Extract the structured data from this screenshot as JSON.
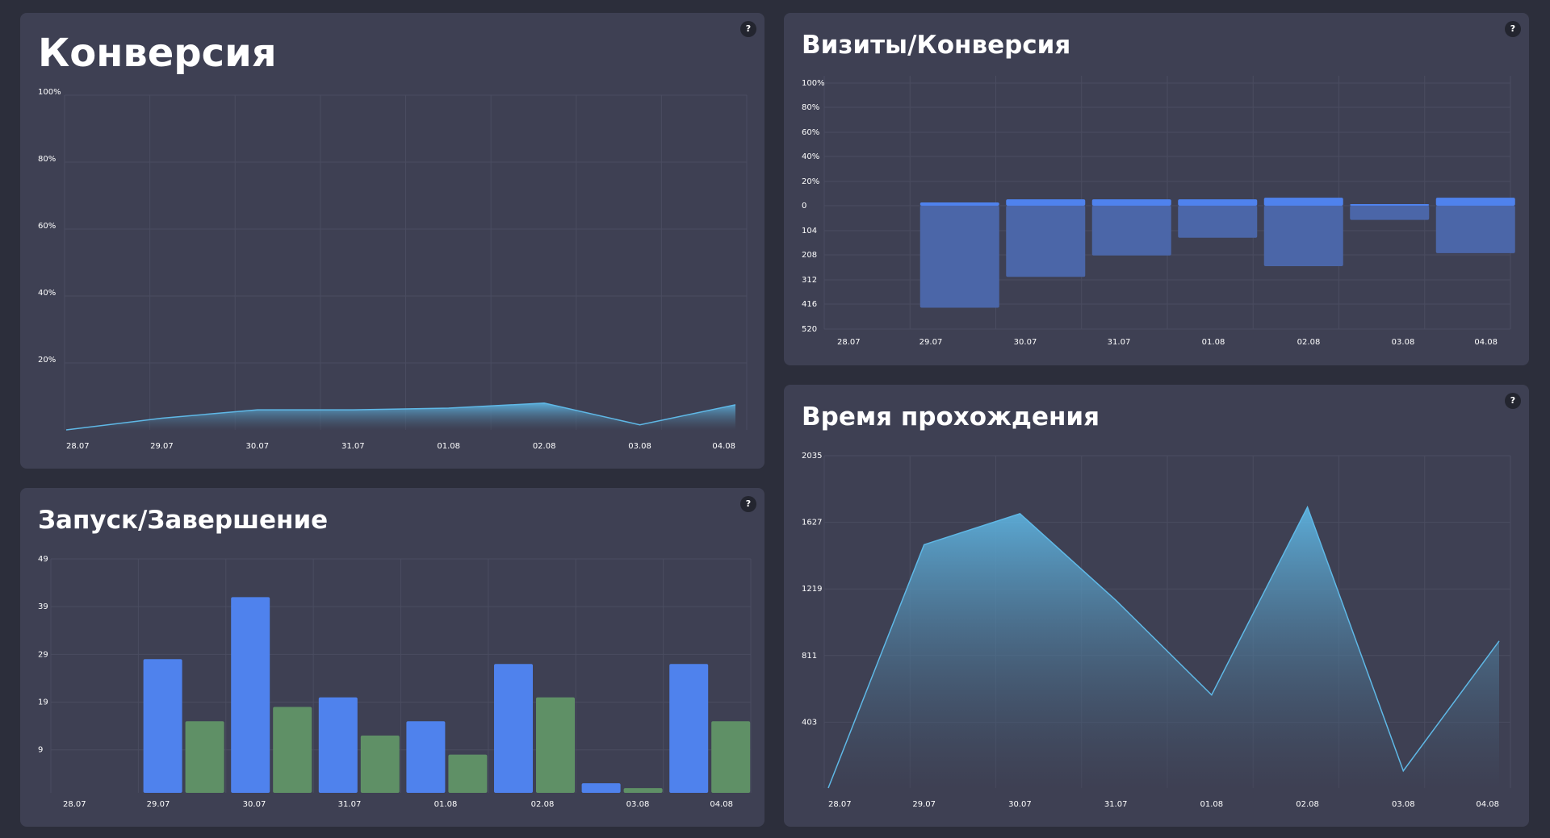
{
  "colors": {
    "background": "#2c2e3b",
    "panel": "#3e4053",
    "grid": "#4a4c60",
    "line": "#5fb8e6",
    "blue_bar": "#4f82ed",
    "green_bar": "#5f9066",
    "box_body": "#4b66a8",
    "box_cap": "#4f82ed"
  },
  "help_label": "?",
  "chart_data": [
    {
      "id": "conversion",
      "type": "area",
      "title": "Конверсия",
      "categories": [
        "28.07",
        "29.07",
        "30.07",
        "31.07",
        "01.08",
        "02.08",
        "03.08",
        "04.08"
      ],
      "values": [
        0,
        3.5,
        6,
        6,
        6.5,
        8,
        1.5,
        7.5
      ],
      "y_ticks": [
        "100%",
        "80%",
        "60%",
        "40%",
        "20%"
      ],
      "ylim": [
        0,
        100
      ],
      "grid": true
    },
    {
      "id": "visits_conversion",
      "type": "bar",
      "title": "Визиты/Конверсия",
      "categories": [
        "28.07",
        "29.07",
        "30.07",
        "31.07",
        "01.08",
        "02.08",
        "03.08",
        "04.08"
      ],
      "y_ticks_upper": [
        "100%",
        "80%",
        "60%",
        "40%",
        "20%",
        "0"
      ],
      "y_ticks_lower": [
        "104",
        "208",
        "312",
        "416",
        "520"
      ],
      "series": [
        {
          "values": [
            0,
            2,
            4,
            4,
            4,
            5,
            1,
            5
          ]
        },
        {
          "values": [
            0,
            430,
            300,
            210,
            135,
            255,
            60,
            200
          ]
        }
      ],
      "grid": true
    },
    {
      "id": "start_finish",
      "type": "bar",
      "title": "Запуск/Завершение",
      "categories": [
        "28.07",
        "29.07",
        "30.07",
        "31.07",
        "01.08",
        "02.08",
        "03.08",
        "04.08"
      ],
      "y_ticks": [
        "49",
        "39",
        "29",
        "19",
        "9"
      ],
      "ylim": [
        0,
        49
      ],
      "series": [
        {
          "values": [
            0,
            28,
            41,
            20,
            15,
            27,
            2,
            27
          ]
        },
        {
          "values": [
            0,
            15,
            18,
            12,
            8,
            20,
            1,
            15
          ]
        }
      ],
      "grid": true
    },
    {
      "id": "completion_time",
      "type": "area",
      "title": "Время прохождения",
      "categories": [
        "28.07",
        "29.07",
        "30.07",
        "31.07",
        "01.08",
        "02.08",
        "03.08",
        "04.08"
      ],
      "values": [
        0,
        1490,
        1680,
        1150,
        570,
        1720,
        105,
        900
      ],
      "y_ticks": [
        "2035",
        "1627",
        "1219",
        "811",
        "403"
      ],
      "ylim": [
        0,
        2035
      ],
      "grid": true
    }
  ]
}
